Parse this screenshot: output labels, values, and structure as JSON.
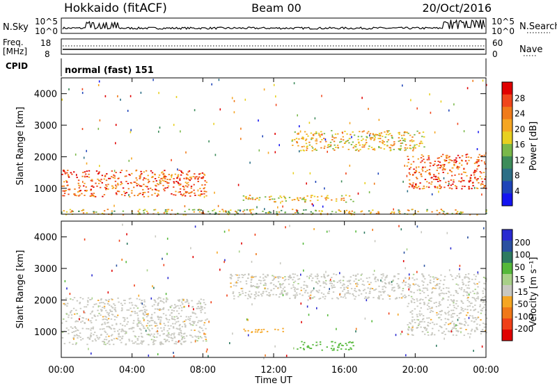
{
  "header": {
    "title_left": "Hokkaido (fitACF)",
    "title_center": "Beam 00",
    "title_right": "20/Oct/2016"
  },
  "status_panel": {
    "nsky_label": "N.Sky",
    "nsearch_label": "N.Search",
    "nsky_ticks": [
      "10^5",
      "10^0"
    ],
    "nsearch_ticks": [
      "10^5",
      "10^0"
    ],
    "freq_label_1": "Freq.",
    "freq_label_2": "[MHz]",
    "freq_ticks": [
      "18",
      "8"
    ],
    "nave_label": "Nave",
    "nave_ticks": [
      "60",
      "0"
    ],
    "cpid_label": "CPID",
    "cpid_text": "normal (fast) 151"
  },
  "x_axis": {
    "label": "Time UT",
    "ticks": [
      "00:00",
      "04:00",
      "08:00",
      "12:00",
      "16:00",
      "20:00",
      "00:00"
    ]
  },
  "colors": {
    "velocity_scale": [
      "#2a2ad0",
      "#2a50a0",
      "#2e7a60",
      "#55b83a",
      "#a8d088",
      "#c8c8c0",
      "#f5a623",
      "#f07818",
      "#f04018",
      "#e00000"
    ],
    "power_scale": [
      "#1414f0",
      "#1e44b8",
      "#2c6e86",
      "#3d8c5a",
      "#7ab84a",
      "#e8d020",
      "#f5a623",
      "#f07b1a",
      "#f0461c",
      "#e00000"
    ]
  },
  "chart_data": [
    {
      "type": "heatmap",
      "title": "",
      "ylabel": "Slant Range [km]",
      "xlabel": "",
      "x_range_hours": [
        0,
        24
      ],
      "ylim": [
        180,
        4500
      ],
      "yticks": [
        "1000",
        "2000",
        "3000",
        "4000"
      ],
      "colorbar_label": "Power [dB]",
      "colorbar_ticks": [
        "4",
        "8",
        "12",
        "16",
        "20",
        "24",
        "28"
      ],
      "colorbar_range": [
        0,
        30
      ],
      "regions": [
        {
          "t0": 0.0,
          "t1": 8.2,
          "r0": 750,
          "r1": 1600,
          "level": "high"
        },
        {
          "t0": 13.0,
          "t1": 20.5,
          "r0": 2200,
          "r1": 2850,
          "level": "mid"
        },
        {
          "t0": 10.0,
          "t1": 16.5,
          "r0": 580,
          "r1": 800,
          "level": "mid"
        },
        {
          "t0": 19.5,
          "t1": 24.0,
          "r0": 1000,
          "r1": 2100,
          "level": "high"
        },
        {
          "t0": 0.0,
          "t1": 24.0,
          "r0": 180,
          "r1": 350,
          "level": "low"
        }
      ]
    },
    {
      "type": "heatmap",
      "title": "",
      "ylabel": "Slant Range [km]",
      "xlabel": "Time UT",
      "x_range_hours": [
        0,
        24
      ],
      "ylim": [
        180,
        4500
      ],
      "yticks": [
        "1000",
        "2000",
        "3000",
        "4000"
      ],
      "colorbar_label": "Velocity [m s⁻¹]",
      "colorbar_ticks": [
        "200",
        "100",
        "50",
        "15",
        "-15",
        "-50",
        "-100",
        "-200"
      ],
      "colorbar_range": [
        -250,
        250
      ],
      "regions": [
        {
          "t0": 0.0,
          "t1": 8.2,
          "r0": 600,
          "r1": 2100,
          "level": "near-zero"
        },
        {
          "t0": 9.5,
          "t1": 24.0,
          "r0": 2050,
          "r1": 2850,
          "level": "near-zero"
        },
        {
          "t0": 13.3,
          "t1": 16.5,
          "r0": 420,
          "r1": 700,
          "level": "positive"
        },
        {
          "t0": 10.0,
          "t1": 12.5,
          "r0": 980,
          "r1": 1120,
          "level": "negative"
        },
        {
          "t0": 19.5,
          "t1": 24.0,
          "r0": 900,
          "r1": 2050,
          "level": "near-zero"
        }
      ]
    }
  ]
}
